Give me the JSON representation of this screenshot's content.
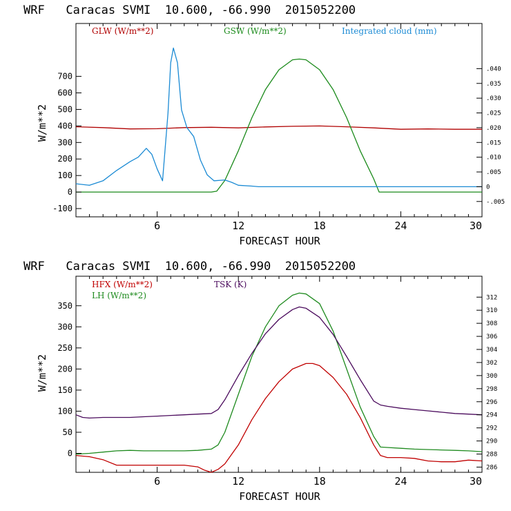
{
  "chart_data": [
    {
      "type": "line",
      "title": "WRF   Caracas SVMI  10.600, -66.990  2015052200",
      "xlabel": "FORECAST HOUR",
      "ylabel": "W/m**2",
      "xlim": [
        0,
        30
      ],
      "ylim": [
        -150,
        1020
      ],
      "x_ticks": [
        6,
        12,
        18,
        24,
        30
      ],
      "y_ticks": [
        -100,
        0,
        100,
        200,
        300,
        400,
        500,
        600,
        700
      ],
      "y2_lim": [
        -0.0102,
        0.0553
      ],
      "y2_ticks": [
        "-.005",
        "0",
        ".005",
        ".010",
        ".015",
        ".020",
        ".025",
        ".030",
        ".035",
        ".040"
      ],
      "y2_tick_values": [
        -0.005,
        0,
        0.005,
        0.01,
        0.015,
        0.02,
        0.025,
        0.03,
        0.035,
        0.04
      ],
      "series": [
        {
          "name": "GLW (W/m**2)",
          "color": "#b00000",
          "axis": "left",
          "x": [
            0,
            2,
            4,
            6,
            8,
            10,
            12,
            14,
            16,
            18,
            20,
            22,
            24,
            26,
            28,
            30
          ],
          "values": [
            395,
            390,
            382,
            383,
            390,
            392,
            388,
            394,
            398,
            400,
            395,
            388,
            380,
            382,
            380,
            380
          ]
        },
        {
          "name": "GSW (W/m**2)",
          "color": "#1a8a1a",
          "axis": "left",
          "x": [
            0,
            10,
            10.4,
            11,
            12,
            13,
            14,
            15,
            16,
            16.5,
            17,
            18,
            19,
            20,
            21,
            22,
            22.4,
            23,
            30
          ],
          "values": [
            0,
            0,
            5,
            70,
            250,
            450,
            620,
            740,
            800,
            805,
            800,
            740,
            620,
            450,
            250,
            80,
            0,
            0,
            0
          ]
        },
        {
          "name": "Integrated cloud (mm)",
          "color": "#1a8ad4",
          "axis": "right",
          "x": [
            0,
            1,
            2,
            3,
            4,
            4.6,
            5.2,
            5.6,
            6,
            6.4,
            6.8,
            7,
            7.2,
            7.5,
            7.8,
            8.2,
            8.7,
            9.2,
            9.7,
            10.2,
            11,
            11.5,
            12,
            13,
            13.5,
            30
          ],
          "values": [
            0.001,
            0.0005,
            0.002,
            0.0055,
            0.0085,
            0.01,
            0.013,
            0.011,
            0.006,
            0.002,
            0.025,
            0.042,
            0.047,
            0.042,
            0.026,
            0.02,
            0.017,
            0.009,
            0.004,
            0.002,
            0.0023,
            0.0015,
            0.0005,
            0.0002,
            0,
            0
          ]
        }
      ]
    },
    {
      "type": "line",
      "title": "WRF   Caracas SVMI  10.600, -66.990  2015052200",
      "xlabel": "FORECAST HOUR",
      "ylabel": "W/m**2",
      "xlim": [
        0,
        30
      ],
      "ylim": [
        -45,
        420
      ],
      "x_ticks": [
        6,
        12,
        18,
        24,
        30
      ],
      "y_ticks": [
        0,
        50,
        100,
        150,
        200,
        250,
        300,
        350
      ],
      "y2_lim": [
        285.2,
        315.2
      ],
      "y2_ticks": [
        "286",
        "288",
        "290",
        "292",
        "294",
        "296",
        "298",
        "300",
        "302",
        "304",
        "306",
        "308",
        "310",
        "312"
      ],
      "y2_tick_values": [
        286,
        288,
        290,
        292,
        294,
        296,
        298,
        300,
        302,
        304,
        306,
        308,
        310,
        312
      ],
      "series": [
        {
          "name": "HFX (W/m**2)",
          "color": "#c00000",
          "axis": "left",
          "x": [
            0,
            1,
            2,
            3,
            4,
            5,
            6,
            7,
            8,
            9,
            9.5,
            10,
            10.5,
            11,
            12,
            13,
            14,
            15,
            16,
            17,
            17.5,
            18,
            19,
            20,
            21,
            22,
            22.5,
            23,
            24,
            25,
            26,
            27,
            28,
            29,
            30
          ],
          "values": [
            -5,
            -8,
            -15,
            -28,
            -28,
            -28,
            -28,
            -28,
            -28,
            -32,
            -40,
            -45,
            -38,
            -25,
            20,
            80,
            130,
            170,
            200,
            213,
            213,
            208,
            180,
            140,
            85,
            20,
            -5,
            -10,
            -10,
            -12,
            -18,
            -20,
            -20,
            -16,
            -18
          ]
        },
        {
          "name": "LH (W/m**2)",
          "color": "#1e8a1e",
          "axis": "left",
          "x": [
            0,
            1,
            2,
            3,
            4,
            5,
            6,
            7,
            8,
            9,
            10,
            10.5,
            11,
            12,
            13,
            14,
            15,
            16,
            16.5,
            17,
            18,
            19,
            20,
            21,
            22,
            22.5,
            23,
            24,
            25,
            26,
            27,
            28,
            29,
            30
          ],
          "values": [
            -2,
            0,
            3,
            6,
            7,
            6,
            6,
            6,
            6,
            7,
            10,
            20,
            50,
            140,
            230,
            300,
            350,
            375,
            380,
            378,
            355,
            290,
            200,
            110,
            40,
            15,
            14,
            12,
            10,
            9,
            8,
            7,
            6,
            4
          ]
        },
        {
          "name": "TSK (K)",
          "color": "#4a0a5c",
          "axis": "right",
          "x": [
            0,
            0.5,
            1,
            2,
            3,
            4,
            5,
            6,
            7,
            8,
            9,
            10,
            10.5,
            11,
            12,
            13,
            14,
            15,
            16,
            16.5,
            17,
            18,
            19,
            20,
            21,
            22,
            22.5,
            23,
            24,
            25,
            26,
            27,
            28,
            29,
            30
          ],
          "values": [
            294.0,
            293.6,
            293.5,
            293.6,
            293.6,
            293.6,
            293.7,
            293.8,
            293.9,
            294.0,
            294.1,
            294.2,
            294.8,
            296.3,
            300.0,
            303.4,
            306.4,
            308.6,
            310.1,
            310.5,
            310.3,
            308.9,
            306.3,
            302.9,
            299.4,
            296.1,
            295.5,
            295.3,
            295.0,
            294.8,
            294.6,
            294.4,
            294.2,
            294.1,
            294.0
          ]
        }
      ]
    }
  ]
}
